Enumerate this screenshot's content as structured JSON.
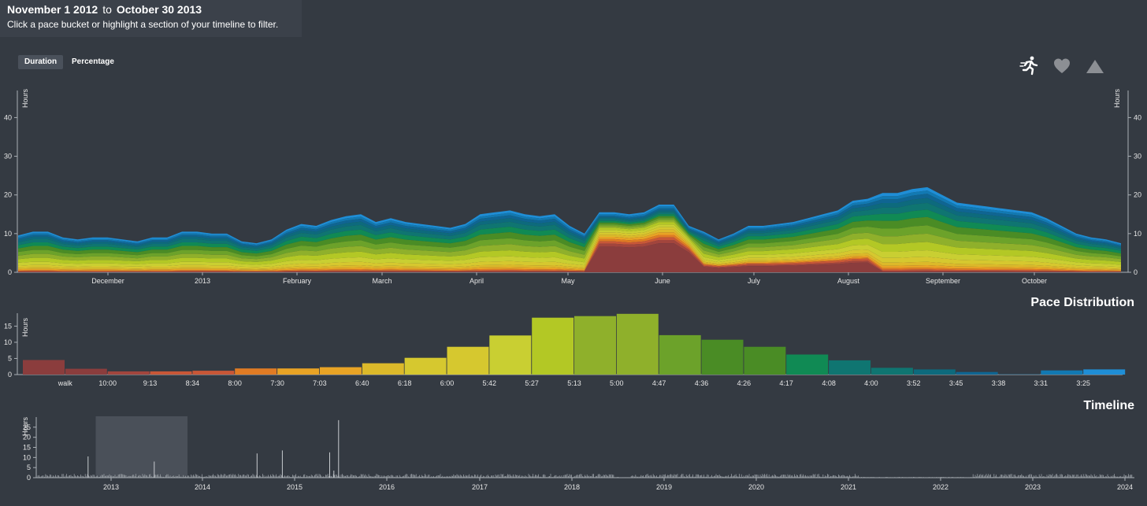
{
  "header": {
    "start_date": "November 1 2012",
    "to_label": "to",
    "end_date": "October 30 2013",
    "instructions": "Click a pace bucket or highlight a section of your timeline to filter."
  },
  "toggles": {
    "duration_label": "Duration",
    "percentage_label": "Percentage",
    "active": "Duration"
  },
  "metric_icons": [
    {
      "name": "running-icon",
      "active": true
    },
    {
      "name": "heart-icon",
      "active": false
    },
    {
      "name": "mountain-icon",
      "active": false
    }
  ],
  "sections": {
    "pace_distribution_title": "Pace Distribution",
    "timeline_title": "Timeline"
  },
  "colors": {
    "background": "#343a42",
    "pace_palette": [
      "#8b3d3d",
      "#a2453d",
      "#c85737",
      "#e07b24",
      "#e8a325",
      "#dcb92a",
      "#d6c82f",
      "#c9cf32",
      "#b3c825",
      "#8fb02b",
      "#6ca22a",
      "#4a8c25",
      "#108a54",
      "#0f7571",
      "#0d6a7d",
      "#0f6592",
      "#1279b2",
      "#1f8ed6"
    ]
  },
  "chart_data": [
    {
      "id": "stacked-area",
      "type": "area",
      "ylabel": "Hours",
      "ylim": [
        0,
        47
      ],
      "yticks": [
        0,
        10,
        20,
        30,
        40
      ],
      "month_labels": [
        "December",
        "2013",
        "February",
        "March",
        "April",
        "May",
        "June",
        "July",
        "August",
        "September",
        "October"
      ],
      "series_total_hours": [
        9.5,
        10.5,
        10.5,
        9.0,
        8.5,
        9.0,
        9.0,
        8.5,
        8.0,
        9.0,
        9.0,
        10.5,
        10.5,
        10.0,
        10.0,
        8.0,
        7.5,
        8.5,
        11.0,
        12.5,
        12.0,
        13.5,
        14.5,
        15.0,
        13.0,
        14.0,
        13.0,
        12.5,
        12.0,
        11.5,
        12.5,
        15.0,
        15.5,
        16.0,
        15.0,
        14.5,
        15.0,
        12.0,
        10.0,
        15.5,
        15.5,
        15.0,
        15.5,
        17.5,
        17.5,
        12.0,
        10.5,
        8.5,
        10.0,
        12.0,
        12.0,
        12.5,
        13.0,
        14.0,
        15.0,
        16.0,
        18.5,
        19.0,
        20.5,
        20.5,
        21.5,
        22.0,
        20.0,
        18.0,
        17.5,
        17.0,
        16.5,
        16.0,
        15.5,
        14.0,
        12.0,
        10.0,
        9.0,
        8.5,
        7.5
      ],
      "note": "series_total_hours is the stacked total over 75 evenly spaced points between Nov 1 2012 and Oct 30 2013"
    },
    {
      "id": "pace-distribution",
      "type": "bar",
      "ylabel": "Hours",
      "ylim": [
        0,
        19
      ],
      "yticks": [
        0,
        5,
        10,
        15
      ],
      "categories": [
        "walk",
        "10:00",
        "9:13",
        "8:34",
        "8:00",
        "7:30",
        "7:03",
        "6:40",
        "6:18",
        "6:00",
        "5:42",
        "5:27",
        "5:13",
        "5:00",
        "4:47",
        "4:36",
        "4:26",
        "4:17",
        "4:08",
        "4:00",
        "3:52",
        "3:45",
        "3:38",
        "3:31",
        "3:25"
      ],
      "values": [
        4.5,
        1.8,
        1.0,
        1.0,
        1.2,
        1.9,
        1.9,
        2.3,
        3.5,
        5.2,
        8.6,
        12.1,
        17.6,
        18.1,
        18.8,
        12.2,
        10.8,
        8.6,
        6.2,
        4.4,
        2.1,
        1.6,
        0.8,
        0.1,
        1.3
      ],
      "extra_bar_value": 1.6
    },
    {
      "id": "timeline",
      "type": "bar",
      "ylabel": "Hours",
      "ylim": [
        0,
        30
      ],
      "yticks": [
        0,
        5,
        10,
        15,
        20,
        25
      ],
      "x_labels": [
        "2013",
        "2014",
        "2015",
        "2016",
        "2017",
        "2018",
        "2019",
        "2020",
        "2021",
        "2022",
        "2023",
        "2024"
      ],
      "brush_range": [
        "November 1 2012",
        "October 30 2013"
      ],
      "spikes": [
        {
          "date": "2012-10-01",
          "value": 10.5
        },
        {
          "date": "2013-06-20",
          "value": 8.0
        },
        {
          "date": "2014-08-01",
          "value": 12.0
        },
        {
          "date": "2014-11-10",
          "value": 13.5
        },
        {
          "date": "2015-05-15",
          "value": 12.5
        },
        {
          "date": "2015-06-20",
          "value": 28.5
        },
        {
          "date": "2015-06-01",
          "value": 3.5
        }
      ]
    }
  ]
}
